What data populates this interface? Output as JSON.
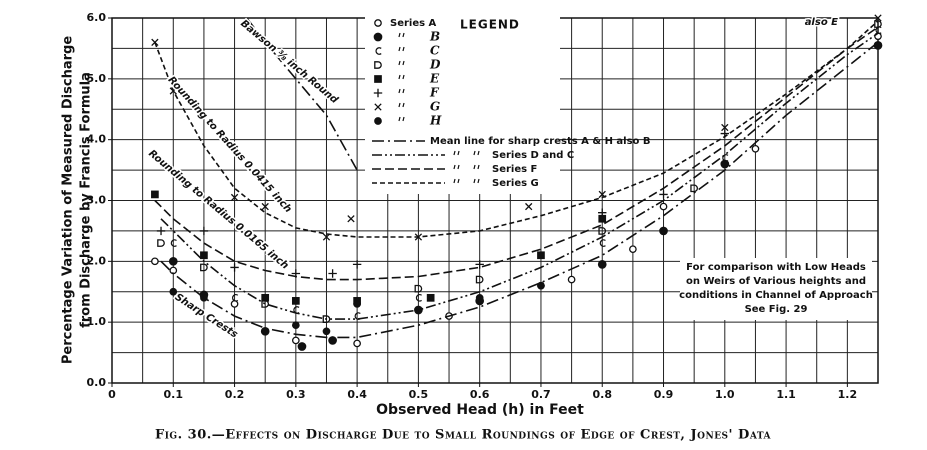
{
  "chart_data": {
    "type": "scatter",
    "title": "Fig. 30.—Effects on Discharge Due to Small Roundings of Edge of Crest, Jones' Data",
    "xlabel": "Observed Head (h) in Feet",
    "ylabel": [
      "Percentage Variation of Measured Discharge",
      "from Discharge by Francis Formula"
    ],
    "legend_title": "LEGEND",
    "xlim": [
      0,
      1.25
    ],
    "ylim": [
      0,
      6
    ],
    "xticks": [
      0,
      0.1,
      0.2,
      0.3,
      0.4,
      0.5,
      0.6,
      0.7,
      0.8,
      0.9,
      {
        "value": 1,
        "label": "1.0"
      },
      1.1,
      1.2
    ],
    "yticks": [
      {
        "value": 0,
        "label": "0.0"
      },
      {
        "value": 1,
        "label": "1.0"
      },
      {
        "value": 2,
        "label": "2.0"
      },
      {
        "value": 3,
        "label": "3.0"
      },
      {
        "value": 4,
        "label": "4.0"
      },
      {
        "value": 5,
        "label": "5.0"
      },
      {
        "value": 6,
        "label": "6.0"
      }
    ],
    "xgrid": [
      0,
      0.05,
      0.1,
      0.15,
      0.2,
      0.25,
      0.3,
      0.35,
      0.4,
      0.45,
      0.5,
      0.55,
      0.6,
      0.65,
      0.7,
      0.75,
      0.8,
      0.85,
      0.9,
      0.95,
      1,
      1.05,
      1.1,
      1.15,
      1.2,
      1.25
    ],
    "ygrid": [
      0,
      0.5,
      1,
      1.5,
      2,
      2.5,
      3,
      3.5,
      4,
      4.5,
      5,
      5.5,
      6
    ],
    "grid": true,
    "series": [
      {
        "name": "Series A",
        "marker": "open-circle",
        "color": "#111",
        "x": [
          0.07,
          0.1,
          0.2,
          0.3,
          0.4,
          0.55,
          0.7,
          0.75,
          0.85,
          0.9,
          1.05,
          1.25
        ],
        "y": [
          2.0,
          1.85,
          1.3,
          0.7,
          0.65,
          1.1,
          1.6,
          1.7,
          2.2,
          2.9,
          3.85,
          5.7
        ]
      },
      {
        "name": "B",
        "marker": "filled-circle",
        "color": "#111",
        "x": [
          0.1,
          0.15,
          0.25,
          0.31,
          0.36,
          0.5,
          0.6,
          0.8,
          0.9,
          1.0,
          1.25
        ],
        "y": [
          2.0,
          1.45,
          0.85,
          0.6,
          0.7,
          1.2,
          1.35,
          1.95,
          2.5,
          3.6,
          5.55
        ]
      },
      {
        "name": "C",
        "marker": "c",
        "color": "#111",
        "x": [
          0.1,
          0.2,
          0.3,
          0.4,
          0.5,
          0.8,
          1.0,
          1.25
        ],
        "y": [
          2.3,
          1.4,
          1.2,
          1.1,
          1.4,
          2.3,
          3.7,
          5.8
        ]
      },
      {
        "name": "D",
        "marker": "d",
        "color": "#111",
        "x": [
          0.08,
          0.15,
          0.25,
          0.35,
          0.5,
          0.6,
          0.8,
          0.95,
          1.25
        ],
        "y": [
          2.3,
          1.9,
          1.3,
          1.05,
          1.55,
          1.7,
          2.5,
          3.2,
          5.9
        ]
      },
      {
        "name": "E",
        "marker": "square",
        "color": "#111",
        "x": [
          0.07,
          0.15,
          0.25,
          0.3,
          0.4,
          0.52,
          0.7,
          0.8
        ],
        "y": [
          3.1,
          2.1,
          1.4,
          1.35,
          1.35,
          1.4,
          2.1,
          2.7
        ]
      },
      {
        "name": "F",
        "marker": "plus",
        "color": "#111",
        "x": [
          0.08,
          0.15,
          0.2,
          0.3,
          0.36,
          0.4,
          0.6,
          0.8,
          0.9,
          1.0
        ],
        "y": [
          2.5,
          2.5,
          1.9,
          1.8,
          1.8,
          1.95,
          1.95,
          2.8,
          3.1,
          4.1
        ]
      },
      {
        "name": "G",
        "marker": "cross",
        "color": "#111",
        "x": [
          0.07,
          0.1,
          0.2,
          0.25,
          0.35,
          0.39,
          0.5,
          0.68,
          0.8,
          1.0,
          1.25
        ],
        "y": [
          5.6,
          4.8,
          3.05,
          2.9,
          2.4,
          2.7,
          2.4,
          2.9,
          3.1,
          4.2,
          6.0
        ]
      },
      {
        "name": "H",
        "marker": "dot",
        "color": "#111",
        "x": [
          0.1,
          0.15,
          0.25,
          0.3,
          0.35,
          0.4,
          0.5,
          0.6,
          0.7,
          0.9,
          1.0
        ],
        "y": [
          1.5,
          1.4,
          0.85,
          0.95,
          0.85,
          1.3,
          1.2,
          1.4,
          1.6,
          2.5,
          3.6
        ]
      },
      {
        "name": "Mean line for sharp crests A & H also B",
        "line": "dash-dot",
        "color": "#111",
        "x": [
          0.08,
          0.1,
          0.15,
          0.2,
          0.25,
          0.3,
          0.35,
          0.4,
          0.5,
          0.6,
          0.7,
          0.8,
          0.9,
          1.0,
          1.1,
          1.2,
          1.25
        ],
        "y": [
          2.0,
          1.8,
          1.4,
          1.1,
          0.9,
          0.8,
          0.75,
          0.75,
          0.95,
          1.25,
          1.65,
          2.1,
          2.75,
          3.5,
          4.4,
          5.2,
          5.6
        ]
      },
      {
        "name": "Series D and C",
        "line": "dash-dot-dot",
        "color": "#111",
        "x": [
          0.08,
          0.1,
          0.15,
          0.2,
          0.25,
          0.3,
          0.35,
          0.4,
          0.5,
          0.6,
          0.7,
          0.8,
          0.9,
          1.0,
          1.1,
          1.2,
          1.25
        ],
        "y": [
          2.7,
          2.5,
          2.0,
          1.6,
          1.3,
          1.15,
          1.05,
          1.05,
          1.2,
          1.5,
          1.9,
          2.4,
          3.0,
          3.75,
          4.6,
          5.4,
          5.75
        ]
      },
      {
        "name": "Series F",
        "line": "dash-long",
        "color": "#111",
        "x": [
          0.07,
          0.1,
          0.15,
          0.2,
          0.25,
          0.3,
          0.35,
          0.4,
          0.5,
          0.6,
          0.7,
          0.8,
          0.9,
          1.0,
          1.1,
          1.2,
          1.25
        ],
        "y": [
          3.0,
          2.7,
          2.3,
          2.0,
          1.85,
          1.75,
          1.7,
          1.7,
          1.75,
          1.9,
          2.2,
          2.6,
          3.2,
          3.9,
          4.7,
          5.5,
          5.85
        ]
      },
      {
        "name": "Series G",
        "line": "dash-short",
        "color": "#111",
        "x": [
          0.07,
          0.1,
          0.15,
          0.2,
          0.25,
          0.3,
          0.35,
          0.4,
          0.5,
          0.6,
          0.7,
          0.8,
          0.9,
          1.0,
          1.1,
          1.2,
          1.25
        ],
        "y": [
          5.6,
          4.8,
          3.9,
          3.2,
          2.8,
          2.55,
          2.45,
          2.4,
          2.4,
          2.5,
          2.75,
          3.05,
          3.45,
          4.05,
          4.75,
          5.5,
          5.95
        ]
      },
      {
        "line": "dash-dot",
        "color": "#111",
        "x": [
          0.22,
          0.25,
          0.3,
          0.35,
          0.4
        ],
        "y": [
          6.0,
          5.6,
          5.0,
          4.4,
          3.5
        ]
      }
    ],
    "annotations": [
      "Bawson ⅜ inch Round",
      "Rounding to Radius 0.0415 inch",
      "Rounding to Radius 0.0165 inch",
      "Sharp Crests",
      "also E"
    ],
    "note": [
      "For comparison with Low Heads",
      "on Weirs of Various heights and",
      "conditions in Channel of Approach",
      "See Fig. 29"
    ]
  }
}
